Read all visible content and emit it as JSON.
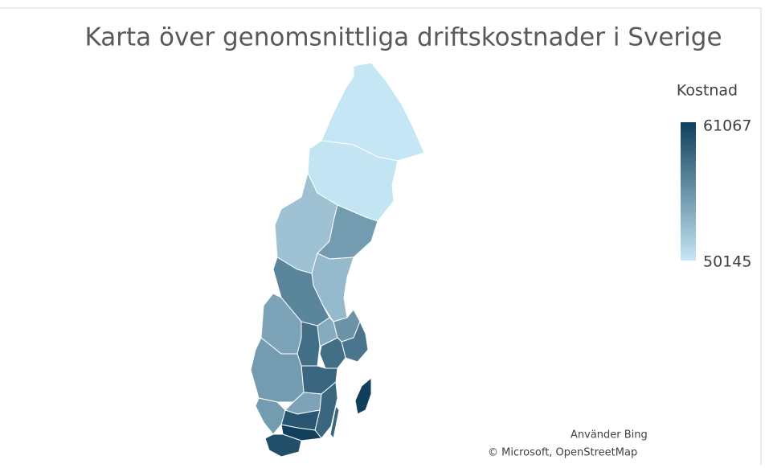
{
  "chart_data": {
    "type": "choropleth",
    "title": "Karta över genomsnittliga driftskostnader i Sverige",
    "legend": {
      "title": "Kostnad",
      "max": 61067,
      "min": 50145,
      "color_max": "#0f3f5b",
      "color_min": "#c5e6f5"
    },
    "values": [
      50145,
      50300,
      52500,
      55000,
      53000,
      56500,
      54500,
      58000,
      54000,
      55500,
      57500,
      58000,
      58500,
      55000,
      54500,
      58500,
      59500,
      55000,
      61000,
      60000,
      61067
    ],
    "attribution": [
      "Använder Bing",
      "© Microsoft, OpenStreetMap"
    ]
  }
}
